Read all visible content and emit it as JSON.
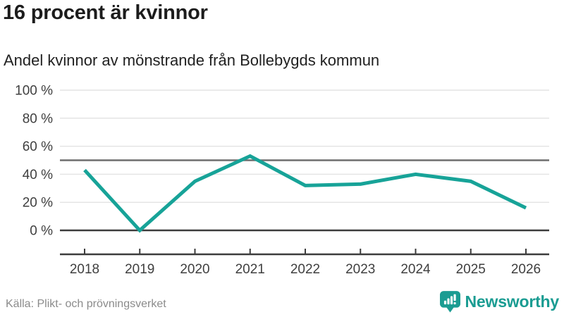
{
  "header": {
    "title": "16 procent är kvinnor",
    "subtitle": "Andel kvinnor av mönstrande från Bollebygds kommun"
  },
  "chart_data": {
    "type": "line",
    "title": "16 procent är kvinnor",
    "subtitle": "Andel kvinnor av mönstrande från Bollebygds kommun",
    "categories": [
      "2018",
      "2019",
      "2020",
      "2021",
      "2022",
      "2023",
      "2024",
      "2025",
      "2026"
    ],
    "values": [
      43,
      0,
      35,
      53,
      32,
      33,
      40,
      35,
      16
    ],
    "unit": "%",
    "ylim": [
      0,
      100
    ],
    "y_ticks": [
      0,
      20,
      40,
      60,
      80,
      100
    ],
    "y_tick_labels": [
      "0 %",
      "20 %",
      "40 %",
      "60 %",
      "80 %",
      "100 %"
    ],
    "reference_line_y": 50,
    "grid": true,
    "legend": "none",
    "line_color": "#17a398",
    "gridline_color": "#e4e4e4",
    "axis_color": "#3c3c3c",
    "reference_line_color": "#6e6e6e"
  },
  "footer": {
    "source": "Källa: Plikt- och prövningsverket",
    "brand": "Newsworthy",
    "brand_color": "#1a9c92"
  }
}
